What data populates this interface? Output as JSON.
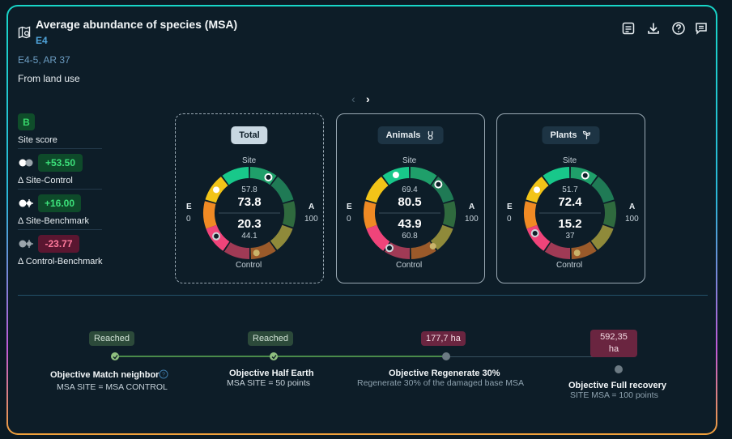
{
  "header": {
    "title": "Average abundance of species (MSA)",
    "subtitle": "E4",
    "meta_line1": "E4-5, AR 37",
    "meta_line2": "From land use"
  },
  "toolbar": {
    "icons": [
      "notes-icon",
      "download-icon",
      "help-icon",
      "comment-icon"
    ]
  },
  "carousel": {
    "prev": "‹",
    "next": "›"
  },
  "side": {
    "score_badge": "B",
    "score_label": "Site score",
    "items": [
      {
        "value": "+53.50",
        "label": "Δ Site-Control",
        "tone": "positive"
      },
      {
        "value": "+16.00",
        "label": "Δ Site-Benchmark",
        "tone": "positive"
      },
      {
        "value": "-23.77",
        "label": "Δ Control-Benchmark",
        "tone": "negative"
      }
    ]
  },
  "gauge_labels": {
    "top": "Site",
    "bottom": "Control",
    "left_letter": "E",
    "left_value": "0",
    "right_letter": "A",
    "right_value": "100"
  },
  "cards": [
    {
      "tab": "Total",
      "active": true,
      "site_small": "57.8",
      "site_big": "73.8",
      "control_big": "20.3",
      "control_small": "44.1"
    },
    {
      "tab": "Animals",
      "active": false,
      "site_small": "69.4",
      "site_big": "80.5",
      "control_big": "43.9",
      "control_small": "60.8"
    },
    {
      "tab": "Plants",
      "active": false,
      "site_small": "51.7",
      "site_big": "72.4",
      "control_big": "15.2",
      "control_small": "37"
    }
  ],
  "objectives": [
    {
      "tag": "Reached",
      "title": "Objective Match neighbor",
      "sub": "MSA SITE = MSA CONTROL",
      "status": "reached"
    },
    {
      "tag": "Reached",
      "title": "Objective Half Earth",
      "sub": "MSA SITE = 50 points",
      "status": "reached"
    },
    {
      "tag": "177,7 ha",
      "title": "Objective Regenerate 30%",
      "sub": "Regenerate 30% of the damaged base MSA",
      "status": "pending"
    },
    {
      "tag": "592,35 ha",
      "title": "Objective Full recovery",
      "sub": "SITE MSA = 100 points",
      "status": "pending"
    }
  ],
  "colors": {
    "accent": "#18d6c8",
    "positive": "#3ce07a",
    "negative": "#ff7a9c"
  }
}
